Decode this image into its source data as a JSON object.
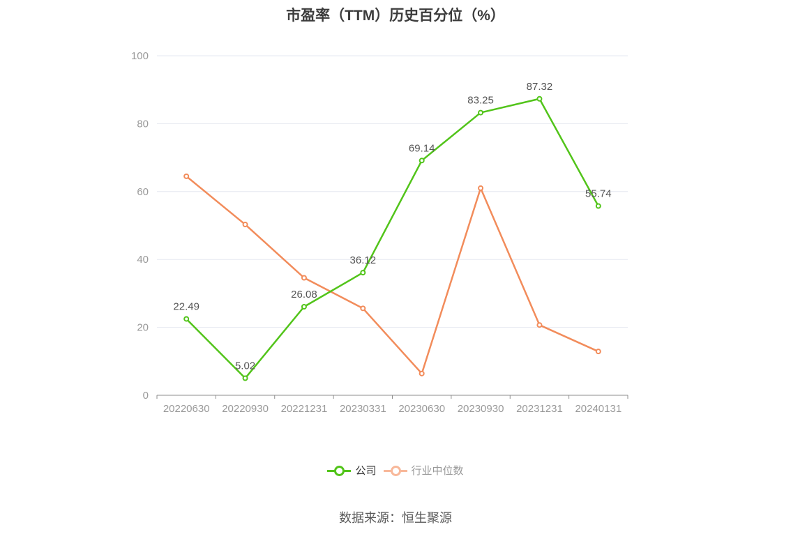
{
  "chart_data": {
    "type": "line",
    "title": "市盈率（TTM）历史百分位（%）",
    "categories": [
      "20220630",
      "20220930",
      "20221231",
      "20230331",
      "20230630",
      "20230930",
      "20231231",
      "20240131"
    ],
    "ylim": [
      0,
      100
    ],
    "yticks": [
      0,
      20,
      40,
      60,
      80,
      100
    ],
    "grid": true,
    "legend_position": "bottom",
    "series": [
      {
        "name": "公司",
        "color": "#52c41a",
        "values": [
          22.49,
          5.02,
          26.08,
          36.12,
          69.14,
          83.25,
          87.32,
          55.74
        ],
        "labels": [
          "22.49",
          "5.02",
          "26.08",
          "36.12",
          "69.14",
          "83.25",
          "87.32",
          "55.74"
        ]
      },
      {
        "name": "行业中位数",
        "color": "#f28c5b",
        "legend_color": "#f8b89a",
        "values": [
          64.5,
          50.3,
          34.6,
          25.6,
          6.4,
          61.0,
          20.7,
          12.9
        ]
      }
    ]
  },
  "legend": {
    "company": "公司",
    "industry": "行业中位数"
  },
  "source": "数据来源：恒生聚源"
}
